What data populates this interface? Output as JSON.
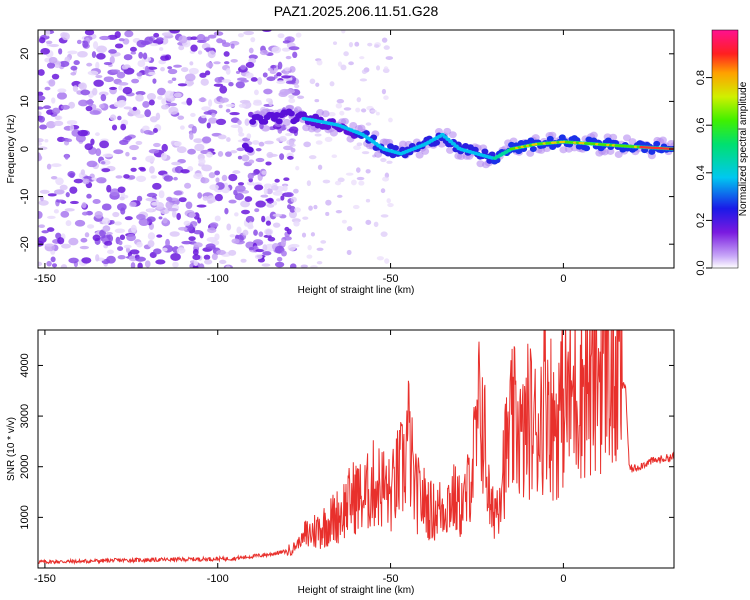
{
  "title": "PAZ1.2025.206.11.51.G28",
  "colors": {
    "snr_line": "#e8302c",
    "axis": "#000000"
  },
  "chart_data": [
    {
      "type": "heatmap",
      "title": "PAZ1.2025.206.11.51.G28",
      "xlabel": "Height of straight line (km)",
      "ylabel": "Frequency (Hz)",
      "xlim": [
        -152,
        32
      ],
      "ylim": [
        -25,
        25
      ],
      "xticks": [
        "-150",
        "-100",
        "-50",
        "0"
      ],
      "yticks": [
        "-20",
        "-10",
        "0",
        "10",
        "20"
      ],
      "ridge": [
        {
          "x": -90,
          "y": 6
        },
        {
          "x": -80,
          "y": 7
        },
        {
          "x": -72,
          "y": 6
        },
        {
          "x": -65,
          "y": 5
        },
        {
          "x": -58,
          "y": 3
        },
        {
          "x": -52,
          "y": 0
        },
        {
          "x": -47,
          "y": -1
        },
        {
          "x": -40,
          "y": 1
        },
        {
          "x": -35,
          "y": 3
        },
        {
          "x": -30,
          "y": 0
        },
        {
          "x": -25,
          "y": -1
        },
        {
          "x": -20,
          "y": -2
        },
        {
          "x": -15,
          "y": 0
        },
        {
          "x": -8,
          "y": 1
        },
        {
          "x": 0,
          "y": 1.5
        },
        {
          "x": 10,
          "y": 1
        },
        {
          "x": 20,
          "y": 0.5
        },
        {
          "x": 32,
          "y": 0
        }
      ],
      "colorbar": {
        "label": "Normalized spectral amplitude",
        "ticks": [
          "0.0",
          "0.2",
          "0.4",
          "0.6",
          "0.8"
        ],
        "range": [
          0,
          1
        ]
      }
    },
    {
      "type": "line",
      "xlabel": "Height of straight line (km)",
      "ylabel": "SNR (10 * v/v)",
      "xlim": [
        -152,
        32
      ],
      "ylim": [
        0,
        4700
      ],
      "xticks": [
        "-150",
        "-100",
        "-50",
        "0"
      ],
      "yticks": [
        "1000",
        "2000",
        "3000",
        "4000"
      ],
      "series": [
        {
          "x": [
            -152,
            -140,
            -130,
            -120,
            -110,
            -100,
            -95,
            -90,
            -85,
            -80,
            -78,
            -75,
            -70,
            -65,
            -62,
            -60,
            -58,
            -55,
            -52,
            -50,
            -48,
            -46,
            -45,
            -43,
            -40,
            -38,
            -35,
            -32,
            -30,
            -28,
            -27,
            -26,
            -25,
            -24,
            -23,
            -22,
            -21,
            -20,
            -19,
            -18,
            -16,
            -15,
            -13,
            -12,
            -10,
            -8,
            -6,
            -5,
            -3,
            -1,
            0,
            2,
            4,
            6,
            8,
            10,
            12,
            13,
            14,
            16,
            17,
            18,
            19,
            20,
            25,
            32
          ],
          "y": [
            120,
            130,
            150,
            160,
            170,
            180,
            190,
            230,
            270,
            330,
            400,
            620,
            800,
            1050,
            1300,
            1450,
            1350,
            1650,
            1600,
            1400,
            1800,
            2000,
            2700,
            1500,
            1300,
            1100,
            1200,
            1400,
            1200,
            1350,
            1900,
            2100,
            2600,
            3300,
            2700,
            1800,
            1000,
            1200,
            1300,
            1900,
            2400,
            2800,
            2900,
            2400,
            3000,
            2700,
            3200,
            3800,
            2800,
            3100,
            3400,
            3300,
            3600,
            3800,
            3500,
            3900,
            4200,
            4700,
            3400,
            3900,
            3600,
            3600,
            2000,
            1950,
            2100,
            2200
          ]
        }
      ]
    }
  ]
}
